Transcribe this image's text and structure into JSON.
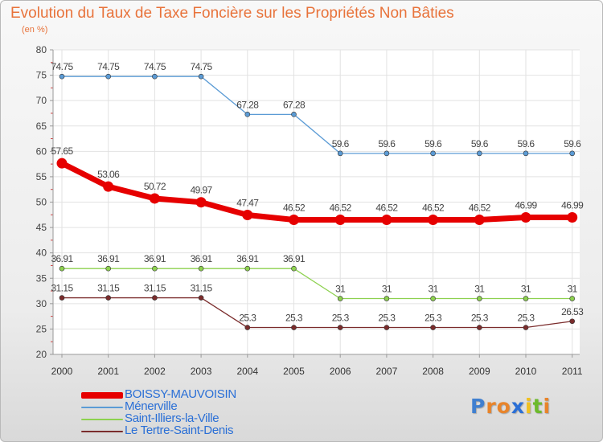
{
  "title": "Evolution du Taux de Taxe Foncière sur les Propriétés Non Bâties",
  "subtitle": "(en %)",
  "brand": {
    "letters": [
      "P",
      "r",
      "o",
      "x",
      "i",
      "t",
      "i"
    ],
    "colors": [
      "#3f7fd0",
      "#e8842a",
      "#e8842a",
      "#2a6fd6",
      "#f0c020",
      "#6cba2c",
      "#e8842a"
    ]
  },
  "chart_data": {
    "type": "line",
    "title": "Evolution du Taux de Taxe Foncière sur les Propriétés Non Bâties",
    "ylabel": "(en %)",
    "xlabel": "",
    "categories": [
      "2000",
      "2001",
      "2002",
      "2003",
      "2004",
      "2005",
      "2006",
      "2007",
      "2008",
      "2009",
      "2010",
      "2011"
    ],
    "ylim": [
      20,
      80
    ],
    "yticks": [
      "20",
      "25",
      "30",
      "35",
      "40",
      "45",
      "50",
      "55",
      "60",
      "65",
      "70",
      "75",
      "80"
    ],
    "grid": true,
    "series": [
      {
        "name": "BOISSY-MAUVOISIN",
        "color": "#e60000",
        "values": [
          57.65,
          53.06,
          50.72,
          49.97,
          47.47,
          46.52,
          46.52,
          46.52,
          46.52,
          46.52,
          46.99,
          46.99
        ],
        "labels": [
          "57.65",
          "53.06",
          "50.72",
          "49.97",
          "47.47",
          "46.52",
          "46.52",
          "46.52",
          "46.52",
          "46.52",
          "46.99",
          "46.99"
        ]
      },
      {
        "name": "Ménerville",
        "color": "#5b9bd5",
        "values": [
          74.75,
          74.75,
          74.75,
          74.75,
          67.28,
          67.28,
          59.6,
          59.6,
          59.6,
          59.6,
          59.6,
          59.6
        ],
        "labels": [
          "74.75",
          "74.75",
          "74.75",
          "74.75",
          "67.28",
          "67.28",
          "59.6",
          "59.6",
          "59.6",
          "59.6",
          "59.6",
          "59.6"
        ]
      },
      {
        "name": "Saint-Illiers-la-Ville",
        "color": "#8dd14f",
        "values": [
          36.91,
          36.91,
          36.91,
          36.91,
          36.91,
          36.91,
          31,
          31,
          31,
          31,
          31,
          31
        ],
        "labels": [
          "36.91",
          "36.91",
          "36.91",
          "36.91",
          "36.91",
          "36.91",
          "31",
          "31",
          "31",
          "31",
          "31",
          "31"
        ]
      },
      {
        "name": "Le Tertre-Saint-Denis",
        "color": "#7b2c2c",
        "values": [
          31.15,
          31.15,
          31.15,
          31.15,
          25.3,
          25.3,
          25.3,
          25.3,
          25.3,
          25.3,
          25.3,
          26.53
        ],
        "labels": [
          "31.15",
          "31.15",
          "31.15",
          "31.15",
          "25.3",
          "25.3",
          "25.3",
          "25.3",
          "25.3",
          "25.3",
          "25.3",
          "26.53"
        ]
      }
    ],
    "legend": "bottom-left"
  }
}
